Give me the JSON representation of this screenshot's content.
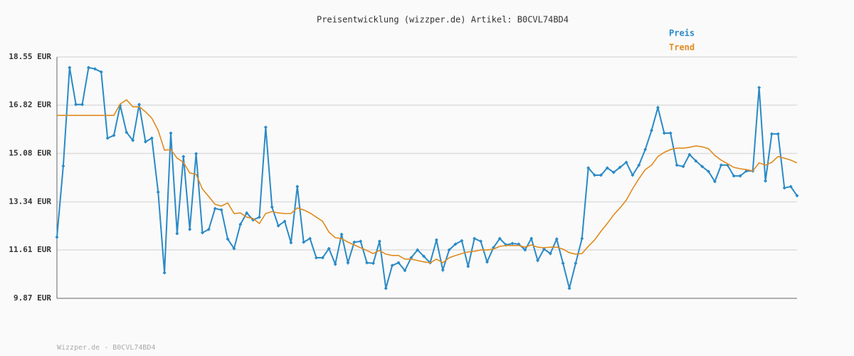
{
  "chart_data": {
    "type": "line",
    "title": "Preisentwicklung (wizzper.de) Artikel: B0CVL74BD4",
    "footer": "Wizzper.de - B0CVL74BD4",
    "ylim": [
      9.87,
      18.55
    ],
    "yticks": [
      {
        "value": 9.87,
        "label": "9.87 EUR"
      },
      {
        "value": 11.61,
        "label": "11.61 EUR"
      },
      {
        "value": 13.34,
        "label": "13.34 EUR"
      },
      {
        "value": 15.08,
        "label": "15.08 EUR"
      },
      {
        "value": 16.82,
        "label": "16.82 EUR"
      },
      {
        "value": 18.55,
        "label": "18.55 EUR"
      }
    ],
    "grid": true,
    "legend": "top-right",
    "series": [
      {
        "name": "Preis",
        "color": "#2a8ac6",
        "markers": true,
        "values": [
          12.07,
          14.63,
          18.17,
          16.84,
          16.84,
          18.17,
          18.12,
          18.01,
          15.63,
          15.73,
          16.81,
          15.84,
          15.55,
          16.84,
          15.5,
          15.63,
          13.69,
          10.79,
          15.81,
          12.2,
          14.97,
          12.35,
          15.07,
          12.23,
          12.35,
          13.1,
          13.05,
          12.0,
          11.66,
          12.53,
          12.94,
          12.69,
          12.79,
          16.02,
          13.15,
          12.48,
          12.64,
          11.87,
          13.89,
          11.89,
          12.02,
          11.33,
          11.33,
          11.66,
          11.1,
          12.17,
          11.15,
          11.89,
          11.92,
          11.15,
          11.13,
          11.92,
          10.23,
          11.05,
          11.15,
          10.87,
          11.33,
          11.61,
          11.38,
          11.15,
          11.97,
          10.89,
          11.61,
          11.82,
          11.94,
          11.02,
          12.02,
          11.92,
          11.18,
          11.69,
          12.02,
          11.79,
          11.84,
          11.82,
          11.61,
          12.02,
          11.23,
          11.64,
          11.48,
          12.0,
          11.13,
          10.23,
          11.13,
          12.02,
          14.56,
          14.3,
          14.3,
          14.56,
          14.4,
          14.58,
          14.76,
          14.3,
          14.66,
          15.22,
          15.91,
          16.73,
          15.81,
          15.81,
          14.66,
          14.61,
          15.04,
          14.81,
          14.61,
          14.43,
          14.07,
          14.66,
          14.66,
          14.27,
          14.27,
          14.45,
          14.45,
          17.45,
          14.09,
          15.78,
          15.78,
          13.84,
          13.89,
          13.56
        ]
      },
      {
        "name": "Trend",
        "color": "#e08a1e",
        "markers": false,
        "values": [
          16.45,
          16.45,
          16.45,
          16.45,
          16.45,
          16.45,
          16.45,
          16.45,
          16.45,
          16.45,
          16.86,
          17.01,
          16.76,
          16.76,
          16.58,
          16.35,
          15.91,
          15.2,
          15.22,
          14.91,
          14.76,
          14.38,
          14.33,
          13.8,
          13.53,
          13.25,
          13.19,
          13.3,
          12.92,
          12.94,
          12.79,
          12.74,
          12.56,
          12.92,
          12.99,
          12.94,
          12.92,
          12.92,
          13.12,
          13.05,
          12.94,
          12.79,
          12.64,
          12.25,
          12.05,
          12.02,
          11.89,
          11.79,
          11.69,
          11.59,
          11.48,
          11.59,
          11.46,
          11.41,
          11.41,
          11.28,
          11.28,
          11.23,
          11.18,
          11.15,
          11.28,
          11.15,
          11.33,
          11.41,
          11.48,
          11.54,
          11.56,
          11.61,
          11.61,
          11.64,
          11.74,
          11.77,
          11.77,
          11.77,
          11.71,
          11.79,
          11.71,
          11.69,
          11.71,
          11.71,
          11.64,
          11.51,
          11.46,
          11.48,
          11.74,
          11.97,
          12.28,
          12.56,
          12.87,
          13.12,
          13.4,
          13.81,
          14.17,
          14.5,
          14.66,
          14.97,
          15.12,
          15.22,
          15.27,
          15.27,
          15.3,
          15.35,
          15.32,
          15.25,
          15.01,
          14.84,
          14.71,
          14.58,
          14.53,
          14.5,
          14.45,
          14.74,
          14.66,
          14.76,
          14.97,
          14.91,
          14.84,
          14.74
        ]
      }
    ]
  }
}
